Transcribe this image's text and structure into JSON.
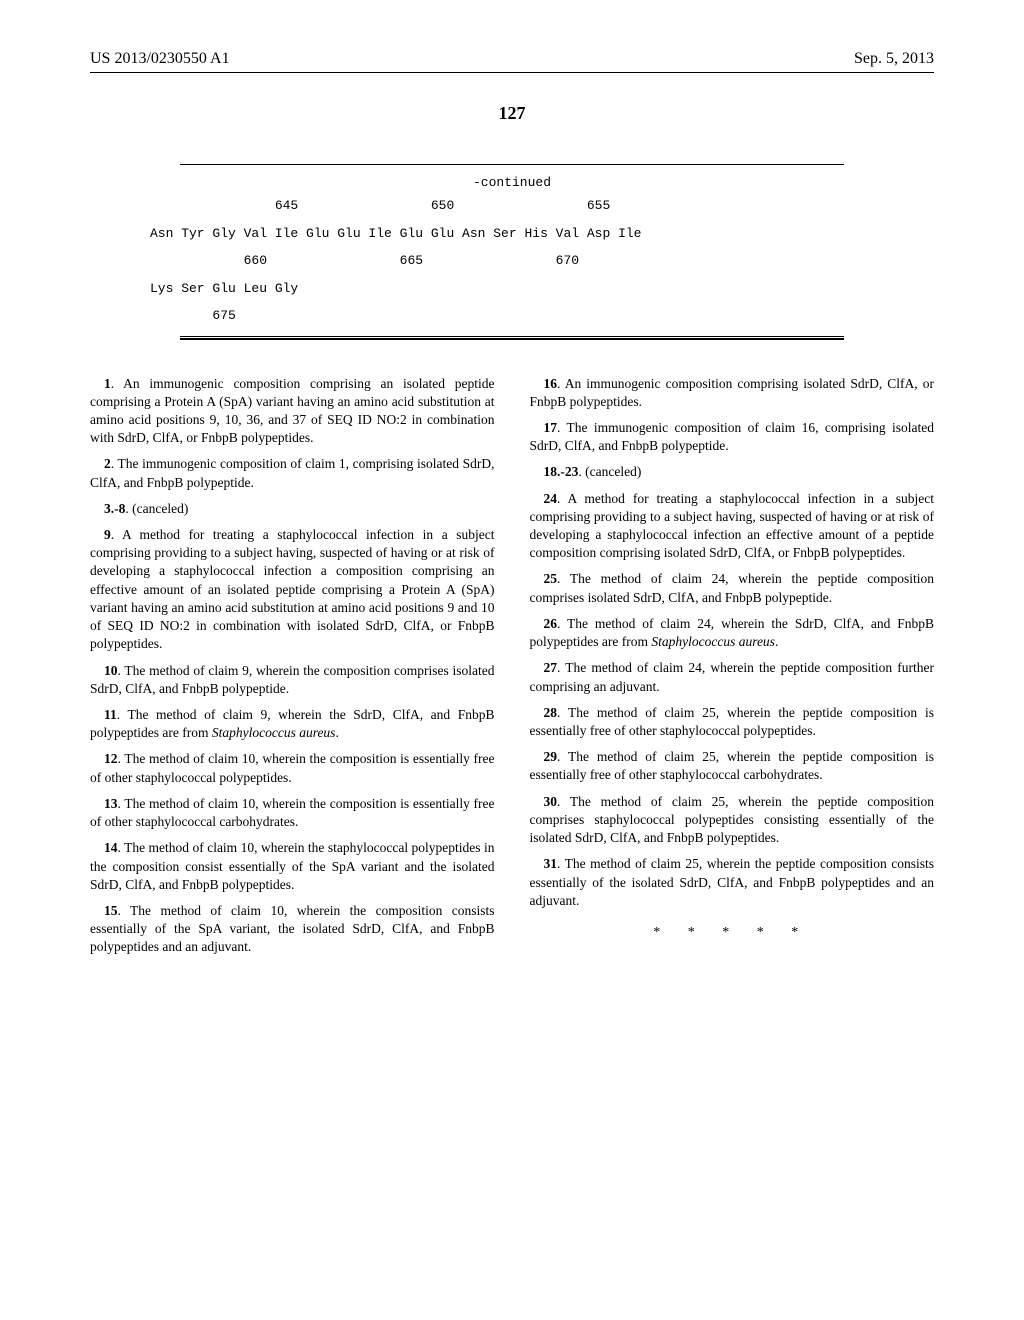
{
  "header": {
    "pub_number": "US 2013/0230550 A1",
    "date": "Sep. 5, 2013"
  },
  "page_number": "127",
  "sequence": {
    "continued": "-continued",
    "line1_nums": "                645                 650                 655",
    "line2_seq": "Asn Tyr Gly Val Ile Glu Glu Ile Glu Glu Asn Ser His Val Asp Ile",
    "line2_nums": "            660                 665                 670",
    "line3_seq": "Lys Ser Glu Leu Gly",
    "line3_nums": "        675"
  },
  "claims_left": [
    {
      "num": "1",
      "text": ". An immunogenic composition comprising an isolated peptide comprising a Protein A (SpA) variant having an amino acid substitution at amino acid positions 9, 10, 36, and 37 of SEQ ID NO:2 in combination with SdrD, ClfA, or FnbpB polypeptides."
    },
    {
      "num": "2",
      "text": ". The immunogenic composition of claim 1, comprising isolated SdrD, ClfA, and FnbpB polypeptide."
    },
    {
      "num": "3.-8",
      "text": ". (canceled)"
    },
    {
      "num": "9",
      "text": ". A method for treating a staphylococcal infection in a subject comprising providing to a subject having, suspected of having or at risk of developing a staphylococcal infection a composition comprising an effective amount of an isolated peptide comprising a Protein A (SpA) variant having an amino acid substitution at amino acid positions 9 and 10 of SEQ ID NO:2 in combination with isolated SdrD, ClfA, or FnbpB polypeptides."
    },
    {
      "num": "10",
      "text": ". The method of claim 9, wherein the composition comprises isolated SdrD, ClfA, and FnbpB polypeptide."
    },
    {
      "num": "11",
      "text": ". The method of claim 9, wherein the SdrD, ClfA, and FnbpB polypeptides are from ",
      "italic": "Staphylococcus aureus",
      "after": "."
    },
    {
      "num": "12",
      "text": ". The method of claim 10, wherein the composition is essentially free of other staphylococcal polypeptides."
    },
    {
      "num": "13",
      "text": ". The method of claim 10, wherein the composition is essentially free of other staphylococcal carbohydrates."
    },
    {
      "num": "14",
      "text": ". The method of claim 10, wherein the staphylococcal polypeptides in the composition consist essentially of the SpA variant and the isolated SdrD, ClfA, and FnbpB polypeptides."
    },
    {
      "num": "15",
      "text": ". The method of claim 10, wherein the composition consists essentially of the SpA variant, the isolated SdrD, ClfA, and FnbpB polypeptides and an adjuvant."
    }
  ],
  "claims_right": [
    {
      "num": "16",
      "text": ". An immunogenic composition comprising isolated SdrD, ClfA, or FnbpB polypeptides."
    },
    {
      "num": "17",
      "text": ". The immunogenic composition of claim 16, comprising isolated SdrD, ClfA, and FnbpB polypeptide."
    },
    {
      "num": "18.-23",
      "text": ". (canceled)"
    },
    {
      "num": "24",
      "text": ". A method for treating a staphylococcal infection in a subject comprising providing to a subject having, suspected of having or at risk of developing a staphylococcal infection an effective amount of a peptide composition comprising isolated SdrD, ClfA, or FnbpB polypeptides."
    },
    {
      "num": "25",
      "text": ". The method of claim 24, wherein the peptide composition comprises isolated SdrD, ClfA, and FnbpB polypeptide."
    },
    {
      "num": "26",
      "text": ". The method of claim 24, wherein the SdrD, ClfA, and FnbpB polypeptides are from ",
      "italic": "Staphylococcus aureus",
      "after": "."
    },
    {
      "num": "27",
      "text": ". The method of claim 24, wherein the peptide composition further comprising an adjuvant."
    },
    {
      "num": "28",
      "text": ". The method of claim 25, wherein the peptide composition is essentially free of other staphylococcal polypeptides."
    },
    {
      "num": "29",
      "text": ". The method of claim 25, wherein the peptide composition is essentially free of other staphylococcal carbohydrates."
    },
    {
      "num": "30",
      "text": ". The method of claim 25, wherein the peptide composition comprises staphylococcal polypeptides consisting essentially of the isolated SdrD, ClfA, and FnbpB polypeptides."
    },
    {
      "num": "31",
      "text": ". The method of claim 25, wherein the peptide composition consists essentially of the isolated SdrD, ClfA, and FnbpB polypeptides and an adjuvant."
    }
  ],
  "end_marks": "* * * * *"
}
